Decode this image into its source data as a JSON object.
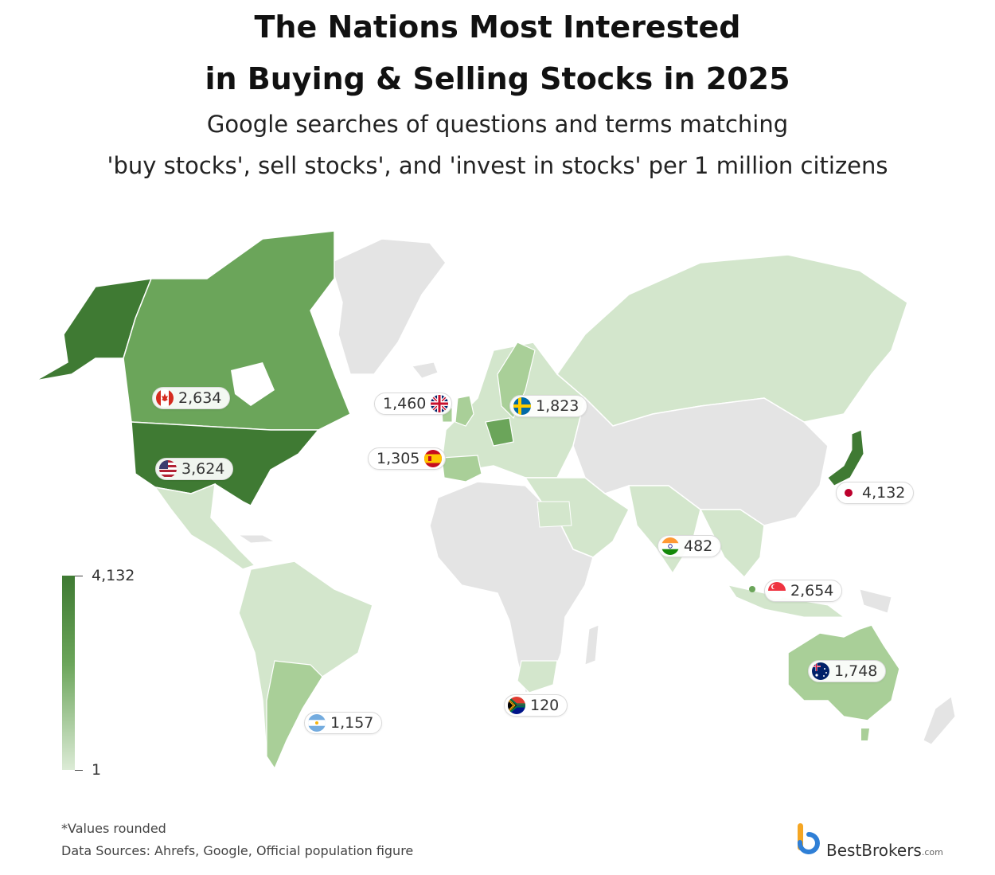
{
  "title_line1": "The Nations Most Interested",
  "title_line2": "in Buying & Selling Stocks in 2025",
  "subtitle_line1": "Google searches of questions and terms matching",
  "subtitle_line2": "'buy stocks', sell stocks', and 'invest in stocks' per 1 million citizens",
  "legend": {
    "max": "4,132",
    "min": "1",
    "color_max": "#3f7a33",
    "color_min": "#dcebd6"
  },
  "colors": {
    "no_data": "#e4e4e4",
    "low": "#d3e6cc",
    "mid": "#a9cf98",
    "high": "#6ba55a",
    "top": "#3f7a33"
  },
  "chart_data": {
    "type": "choropleth",
    "metric": "Google searches per 1 million citizens",
    "scale": [
      1,
      4132
    ],
    "countries": [
      {
        "country": "Japan",
        "flag": "japan-flag-icon",
        "value": 4132,
        "label": "4,132"
      },
      {
        "country": "United States",
        "flag": "usa-flag-icon",
        "value": 3624,
        "label": "3,624"
      },
      {
        "country": "Singapore",
        "flag": "singapore-flag-icon",
        "value": 2654,
        "label": "2,654"
      },
      {
        "country": "Canada",
        "flag": "canada-flag-icon",
        "value": 2634,
        "label": "2,634"
      },
      {
        "country": "Sweden",
        "flag": "sweden-flag-icon",
        "value": 1823,
        "label": "1,823"
      },
      {
        "country": "Australia",
        "flag": "australia-flag-icon",
        "value": 1748,
        "label": "1,748"
      },
      {
        "country": "United Kingdom",
        "flag": "uk-flag-icon",
        "value": 1460,
        "label": "1,460"
      },
      {
        "country": "Spain",
        "flag": "spain-flag-icon",
        "value": 1305,
        "label": "1,305"
      },
      {
        "country": "Argentina",
        "flag": "argentina-flag-icon",
        "value": 1157,
        "label": "1,157"
      },
      {
        "country": "India",
        "flag": "india-flag-icon",
        "value": 482,
        "label": "482"
      },
      {
        "country": "South Africa",
        "flag": "south-africa-flag-icon",
        "value": 120,
        "label": "120"
      }
    ]
  },
  "footnote_line1": "*Values rounded",
  "footnote_line2": "Data Sources: Ahrefs, Google, Official population figure",
  "brand": {
    "name": "BestBrokers",
    "domain": ".com",
    "logo": "bestbrokers-logo-icon"
  }
}
